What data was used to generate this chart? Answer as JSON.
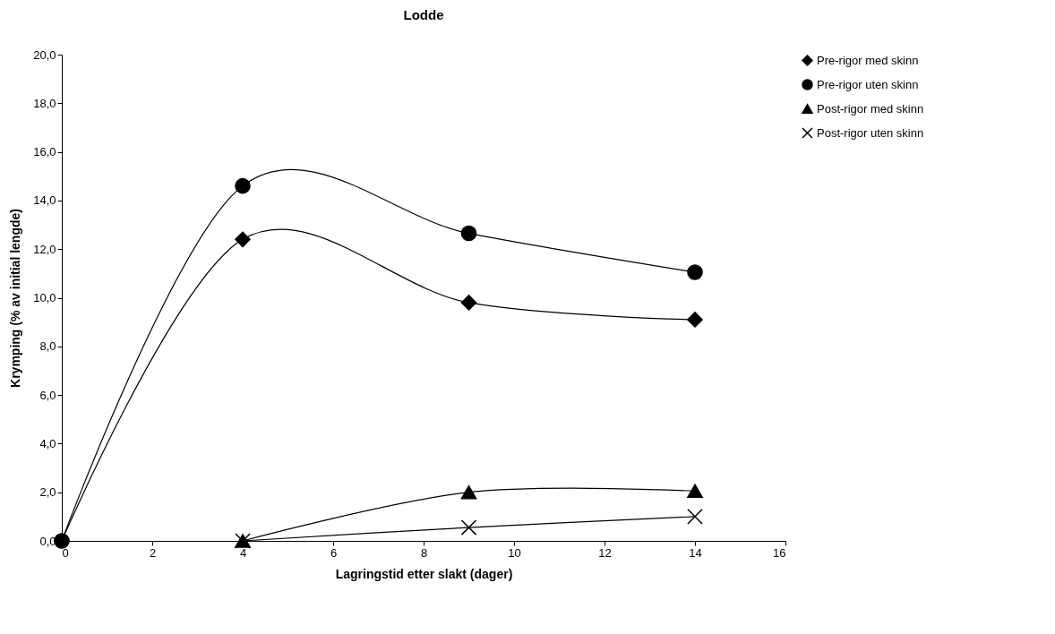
{
  "chart_data": {
    "type": "line",
    "title": "Lodde",
    "xlabel": "Lagringstid etter slakt (dager)",
    "ylabel": "Krymping (% av initial lengde)",
    "xlim": [
      0,
      16
    ],
    "xticks": [
      0,
      2,
      4,
      6,
      8,
      10,
      12,
      14,
      16
    ],
    "ylim": [
      0,
      20
    ],
    "yticks": [
      {
        "value": 0,
        "label": "0,0"
      },
      {
        "value": 2,
        "label": "2,0"
      },
      {
        "value": 4,
        "label": "4,0"
      },
      {
        "value": 6,
        "label": "6,0"
      },
      {
        "value": 8,
        "label": "8,0"
      },
      {
        "value": 10,
        "label": "10,0"
      },
      {
        "value": 12,
        "label": "12,0"
      },
      {
        "value": 14,
        "label": "14,0"
      },
      {
        "value": 16,
        "label": "16,0"
      },
      {
        "value": 18,
        "label": "18,0"
      },
      {
        "value": 20,
        "label": "20,0"
      }
    ],
    "grid": false,
    "legend": "right",
    "series": [
      {
        "name": "Pre-rigor med skinn",
        "color": "#000000",
        "marker": "diamond",
        "x": [
          0,
          4,
          9,
          14
        ],
        "values": [
          0,
          12.4,
          9.8,
          9.1
        ]
      },
      {
        "name": "Pre-rigor uten skinn",
        "color": "#000000",
        "marker": "circle",
        "x": [
          0,
          4,
          9,
          14
        ],
        "values": [
          0,
          14.6,
          12.65,
          11.05
        ]
      },
      {
        "name": "Post-rigor med skinn",
        "color": "#000000",
        "marker": "triangle",
        "x": [
          4,
          9,
          14
        ],
        "values": [
          0,
          2.0,
          2.05
        ]
      },
      {
        "name": "Post-rigor uten skinn",
        "color": "#000000",
        "marker": "cross",
        "x": [
          4,
          9,
          14
        ],
        "values": [
          0,
          0.55,
          1.0
        ]
      }
    ]
  }
}
